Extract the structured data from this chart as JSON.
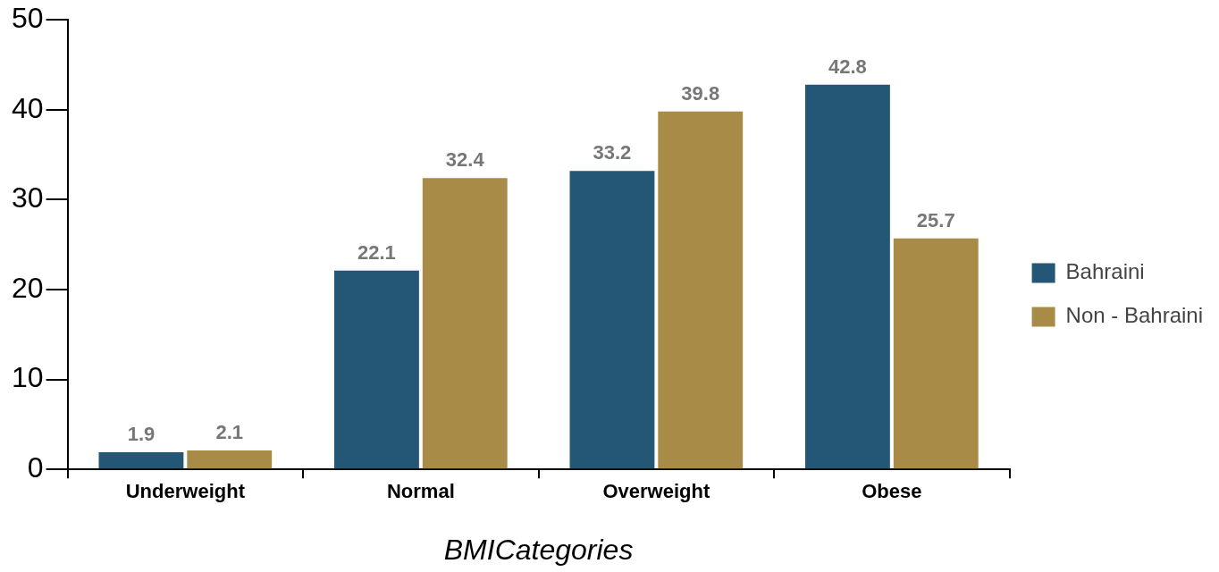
{
  "chart_data": {
    "type": "bar",
    "xlabel": "BMICategories",
    "categories": [
      "Underweight",
      "Normal",
      "Overweight",
      "Obese"
    ],
    "series": [
      {
        "name": "Bahraini",
        "color": "#245776",
        "values": [
          1.9,
          22.1,
          33.2,
          42.8
        ]
      },
      {
        "name": "Non - Bahraini",
        "color": "#a98b48",
        "values": [
          2.1,
          32.4,
          39.8,
          25.7
        ]
      }
    ],
    "ylim": [
      0,
      50
    ],
    "yticks": [
      0,
      10,
      20,
      30,
      40,
      50
    ],
    "grid": false,
    "legend": "right",
    "data_labels": true
  }
}
